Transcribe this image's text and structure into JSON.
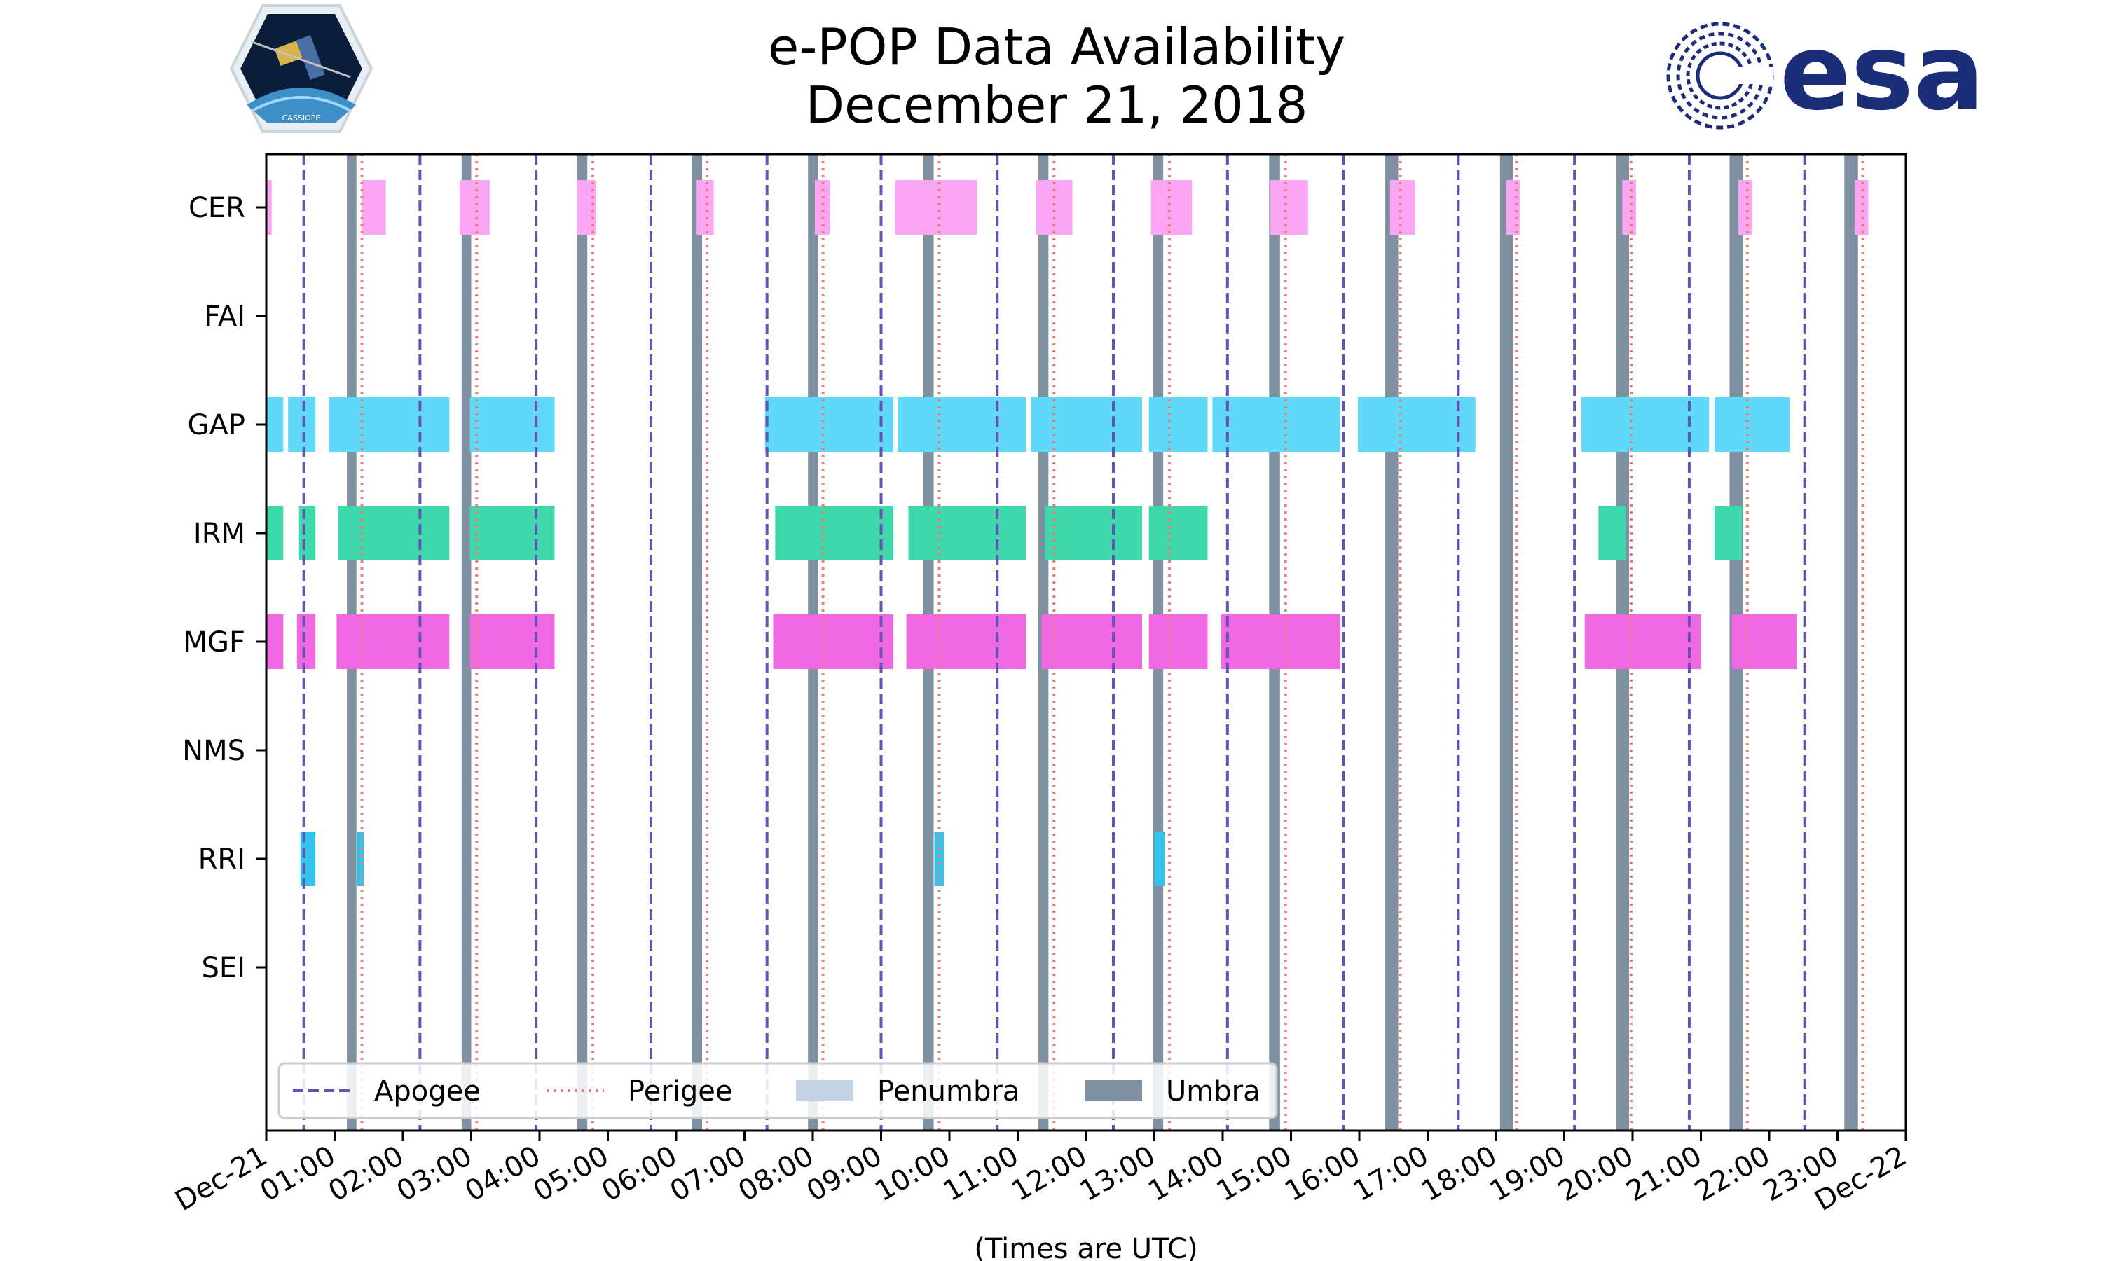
{
  "chart_data": {
    "type": "timeline",
    "title_line1": "e-POP Data Availability",
    "title_line2": "December 21, 2018",
    "xlabel": "(Times are UTC)",
    "x_unit": "hours since 2018-12-21 00:00 UTC",
    "xlim": [
      0,
      24
    ],
    "x_tick_labels": [
      "Dec-21",
      "01:00",
      "02:00",
      "03:00",
      "04:00",
      "05:00",
      "06:00",
      "07:00",
      "08:00",
      "09:00",
      "10:00",
      "11:00",
      "12:00",
      "13:00",
      "14:00",
      "15:00",
      "16:00",
      "17:00",
      "18:00",
      "19:00",
      "20:00",
      "21:00",
      "22:00",
      "23:00",
      "Dec-22"
    ],
    "instruments": [
      {
        "name": "CER",
        "color": "#fba6f5",
        "intervals": [
          [
            0.0,
            0.08
          ],
          [
            1.4,
            1.75
          ],
          [
            2.83,
            3.27
          ],
          [
            4.55,
            4.83
          ],
          [
            6.3,
            6.55
          ],
          [
            8.03,
            8.25
          ],
          [
            9.2,
            10.4
          ],
          [
            11.27,
            11.8
          ],
          [
            12.95,
            13.55
          ],
          [
            14.7,
            15.25
          ],
          [
            16.45,
            16.82
          ],
          [
            18.15,
            18.35
          ],
          [
            19.85,
            20.05
          ],
          [
            21.55,
            21.75
          ],
          [
            23.25,
            23.45
          ]
        ]
      },
      {
        "name": "FAI",
        "color": "#cccccc",
        "intervals": []
      },
      {
        "name": "GAP",
        "color": "#5fd8fa",
        "intervals": [
          [
            0.0,
            0.25
          ],
          [
            0.32,
            0.72
          ],
          [
            0.92,
            2.68
          ],
          [
            2.98,
            4.22
          ],
          [
            7.3,
            9.18
          ],
          [
            9.25,
            11.12
          ],
          [
            11.2,
            12.82
          ],
          [
            12.92,
            13.78
          ],
          [
            13.85,
            15.72
          ],
          [
            15.98,
            17.7
          ],
          [
            19.25,
            21.12
          ],
          [
            21.2,
            22.3
          ]
        ]
      },
      {
        "name": "IRM",
        "color": "#3ed8ab",
        "intervals": [
          [
            0.0,
            0.25
          ],
          [
            0.48,
            0.72
          ],
          [
            1.05,
            2.68
          ],
          [
            2.98,
            4.22
          ],
          [
            7.45,
            9.18
          ],
          [
            9.4,
            11.12
          ],
          [
            11.4,
            12.82
          ],
          [
            12.92,
            13.78
          ],
          [
            19.5,
            19.9
          ],
          [
            21.2,
            21.6
          ]
        ]
      },
      {
        "name": "MGF",
        "color": "#ee69e2",
        "intervals": [
          [
            0.0,
            0.25
          ],
          [
            0.45,
            0.72
          ],
          [
            1.03,
            2.68
          ],
          [
            2.98,
            4.22
          ],
          [
            7.42,
            9.18
          ],
          [
            9.37,
            11.12
          ],
          [
            11.35,
            12.82
          ],
          [
            12.92,
            13.78
          ],
          [
            13.98,
            15.72
          ],
          [
            19.3,
            21.0
          ],
          [
            21.45,
            22.4
          ]
        ]
      },
      {
        "name": "NMS",
        "color": "#cccccc",
        "intervals": []
      },
      {
        "name": "RRI",
        "color": "#34c3ea",
        "intervals": [
          [
            0.5,
            0.72
          ],
          [
            1.33,
            1.43
          ],
          [
            9.78,
            9.92
          ],
          [
            13.0,
            13.15
          ]
        ]
      },
      {
        "name": "SEI",
        "color": "#cccccc",
        "intervals": []
      }
    ],
    "apogee_times": [
      0.55,
      2.25,
      3.95,
      5.63,
      7.33,
      9.0,
      10.7,
      12.4,
      14.07,
      15.77,
      17.45,
      19.15,
      20.83,
      22.52
    ],
    "perigee_times": [
      1.4,
      3.08,
      4.78,
      6.45,
      8.15,
      9.85,
      11.53,
      13.22,
      14.92,
      16.6,
      18.3,
      19.98,
      21.68,
      23.37
    ],
    "umbra_intervals": [
      [
        1.18,
        1.32
      ],
      [
        2.86,
        3.0
      ],
      [
        4.55,
        4.7
      ],
      [
        6.23,
        6.38
      ],
      [
        7.93,
        8.08
      ],
      [
        9.62,
        9.77
      ],
      [
        11.3,
        11.45
      ],
      [
        12.98,
        13.13
      ],
      [
        14.68,
        14.84
      ],
      [
        16.38,
        16.57
      ],
      [
        18.06,
        18.25
      ],
      [
        19.76,
        19.95
      ],
      [
        21.42,
        21.62
      ],
      [
        23.1,
        23.3
      ]
    ],
    "legend": {
      "entries": [
        {
          "label": "Apogee",
          "style": "dashed",
          "color": "#6452b5"
        },
        {
          "label": "Perigee",
          "style": "dotted",
          "color": "#ee7a75"
        },
        {
          "label": "Penumbra",
          "style": "patch",
          "color": "#c5d2e3"
        },
        {
          "label": "Umbra",
          "style": "patch",
          "color": "#7f91a0"
        }
      ],
      "location": "lower-left"
    },
    "colors": {
      "apogee": "#6452b5",
      "perigee": "#ee7a75",
      "umbra": "#7f91a0",
      "penumbra": "#c5d2e3"
    }
  },
  "logos": {
    "mission_badge_text": "CASSIOPE",
    "agency_logo_text": "esa",
    "agency_logo_color": "#1c2e7a"
  }
}
